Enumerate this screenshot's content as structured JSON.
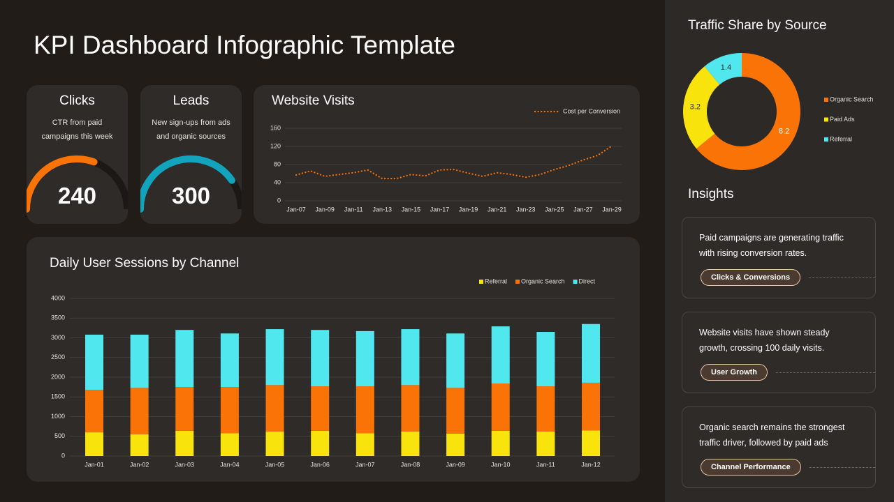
{
  "title": "KPI Dashboard Infographic Template",
  "kpis": [
    {
      "title": "Clicks",
      "description": "CTR from paid campaigns this week",
      "value": 240,
      "color": "#f97306"
    },
    {
      "title": "Leads",
      "description": "New sign-ups from ads and organic sources",
      "value": 300,
      "color": "#13a4bd"
    }
  ],
  "chart_data": [
    {
      "type": "line",
      "title": "Website Visits",
      "categories": [
        "Jan-07",
        null,
        "Jan-09",
        null,
        "Jan-11",
        null,
        "Jan-13",
        null,
        "Jan-15",
        null,
        "Jan-17",
        null,
        "Jan-19",
        null,
        "Jan-21",
        null,
        "Jan-23",
        null,
        "Jan-25",
        null,
        "Jan-27",
        null,
        "Jan-29"
      ],
      "series": [
        {
          "name": "Cost per Conversion",
          "color": "#f97306",
          "values": [
            57,
            66,
            54,
            58,
            62,
            68,
            49,
            49,
            58,
            55,
            68,
            69,
            61,
            54,
            62,
            58,
            52,
            58,
            69,
            78,
            90,
            100,
            121
          ]
        }
      ],
      "ylim": [
        0,
        160
      ],
      "yticks": [
        0,
        40,
        80,
        120,
        160
      ],
      "grid": true
    },
    {
      "type": "bar",
      "stacked": true,
      "title": "Daily User Sessions by Channel",
      "categories": [
        "Jan-01",
        "Jan-02",
        "Jan-03",
        "Jan-04",
        "Jan-05",
        "Jan-06",
        "Jan-07",
        "Jan-08",
        "Jan-09",
        "Jan-10",
        "Jan-11",
        "Jan-12"
      ],
      "series": [
        {
          "name": "Referral",
          "color": "#f8e40c",
          "values": [
            600,
            550,
            640,
            580,
            620,
            640,
            580,
            620,
            570,
            640,
            620,
            650
          ]
        },
        {
          "name": "Organic Search",
          "color": "#f97306",
          "values": [
            1080,
            1180,
            1110,
            1170,
            1180,
            1130,
            1190,
            1180,
            1160,
            1200,
            1150,
            1210
          ]
        },
        {
          "name": "Direct",
          "color": "#50e8ee",
          "values": [
            1400,
            1350,
            1450,
            1360,
            1420,
            1430,
            1400,
            1420,
            1380,
            1450,
            1380,
            1490
          ]
        }
      ],
      "ylim": [
        0,
        4000
      ],
      "yticks": [
        0,
        500,
        1000,
        1500,
        2000,
        2500,
        3000,
        3500,
        4000
      ],
      "grid": true
    },
    {
      "type": "pie",
      "donut": true,
      "title": "Traffic Share by Source",
      "categories": [
        "Organic Search",
        "Paid Ads",
        "Referral"
      ],
      "values": [
        8.2,
        3.2,
        1.4
      ],
      "colors": [
        "#f97306",
        "#f8e40c",
        "#50e8ee"
      ]
    }
  ],
  "insights": {
    "title": "Insights",
    "items": [
      {
        "text": "Paid campaigns are generating traffic with rising conversion rates.",
        "tag": "Clicks & Conversions"
      },
      {
        "text": "Website visits have shown steady growth, crossing 100 daily visits.",
        "tag": "User Growth"
      },
      {
        "text": "Organic search remains the strongest traffic driver, followed by paid ads",
        "tag": "Channel Performance"
      }
    ]
  }
}
